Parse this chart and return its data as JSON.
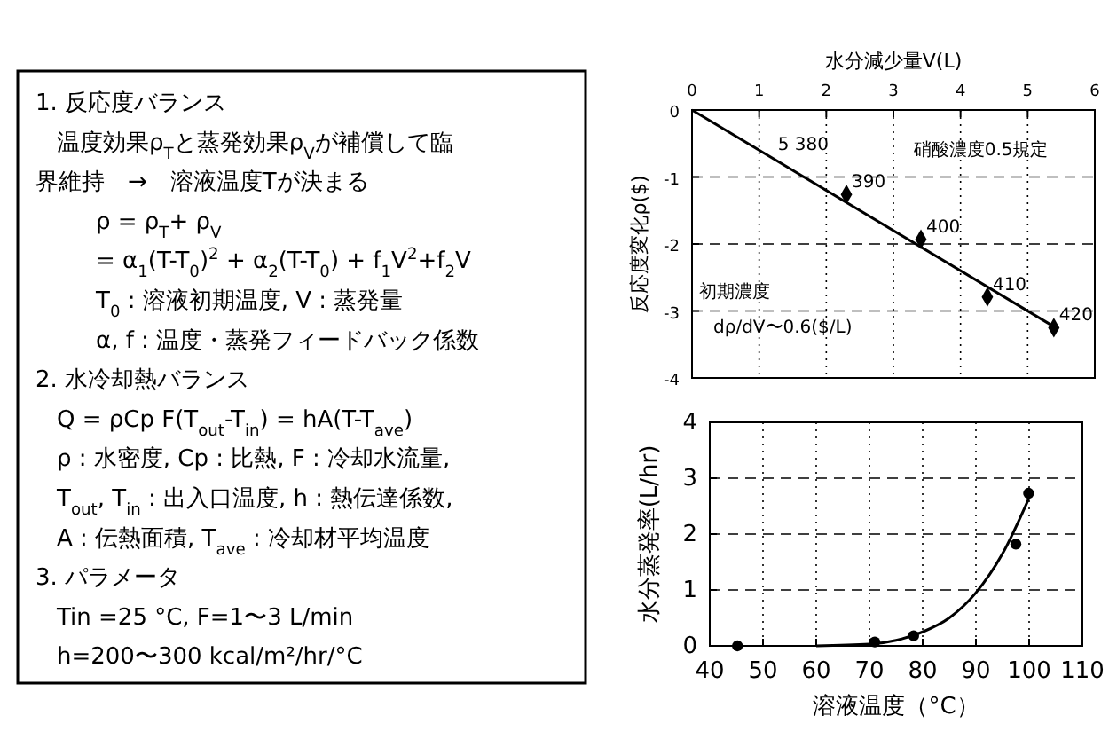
{
  "chart_data": [
    {
      "type": "other",
      "annotations": [
        "1. 反応度バランス",
        "温度効果ρ$_{T}$と蒸発効果ρ$_{V}$が補償して臨",
        "界維持　→　溶液温度Tが決まる",
        "ρ = ρ$_{T}$+ ρ$_{V}$",
        "= α$_{1}$(T-T$_{0}$)$^{2}$ + α$_{2}$(T-T$_{0}$) + f$_{1}$V$^{2}$+f$_{2}$V",
        "T$_{0}$ : 溶液初期温度, V : 蒸発量",
        "α, f : 温度・蒸発フィードバック係数",
        "2. 水冷却熱バランス",
        "Q = ρCp F(T$_{out}$-T$_{in}$) = hA(T-T$_{ave}$)",
        "ρ : 水密度, Cp : 比熱,  F : 冷却水流量,",
        "T$_{out}$, T$_{in}$ : 出入口温度, h : 熱伝達係数,",
        "A : 伝熱面積, T$_{ave}$ : 冷却材平均温度",
        "3. パラメータ",
        "Tin =25 °C,  F=1〜3  L/min",
        "h=200〜300 kcal/m²/hr/°C"
      ]
    },
    {
      "type": "scatter",
      "xlabel": "水分減少量V(L)",
      "ylabel": "反応度変化ρ($)",
      "xlim": [
        0,
        6
      ],
      "xticks": [
        0,
        1,
        2,
        3,
        4,
        5,
        6
      ],
      "ylim": [
        -4,
        0
      ],
      "yticks": [
        0,
        -1,
        -2,
        -3,
        -4
      ],
      "grid": true,
      "marker": "diamond",
      "series": [
        {
          "type": "scatter",
          "color": "#000000",
          "x": [
            2.3,
            3.41,
            4.4,
            5.39
          ],
          "values": [
            -1.26,
            -1.93,
            -2.79,
            -3.25
          ]
        },
        {
          "type": "line",
          "color": "#000000",
          "marker": "none",
          "x": [
            0,
            5.45
          ],
          "values": [
            0,
            -3.27
          ]
        }
      ],
      "annotations": [
        {
          "text": "5 380",
          "x": 1.2,
          "y": -0.7
        },
        {
          "text": "390",
          "x": 2.3,
          "y": -1.26
        },
        {
          "text": "400",
          "x": 3.41,
          "y": -1.93
        },
        {
          "text": "410",
          "x": 4.4,
          "y": -2.79
        },
        {
          "text": "420",
          "x": 5.39,
          "y": -3.25
        },
        "硝酸濃度0.5規定",
        "初期濃度",
        "dρ/dV〜0.6($/L)"
      ]
    },
    {
      "type": "scatter",
      "xlabel": "溶液温度（°C）",
      "ylabel": "水分蒸発率(L/hr)",
      "xlim": [
        40,
        110
      ],
      "xticks": [
        40,
        50,
        60,
        70,
        80,
        90,
        100,
        110
      ],
      "ylim": [
        0,
        4
      ],
      "yticks": [
        0,
        1,
        2,
        3,
        4
      ],
      "grid": true,
      "marker": "circle",
      "series": [
        {
          "type": "scatter",
          "color": "#000000",
          "x": [
            45.2,
            71,
            78.3,
            97.5,
            99.9
          ],
          "values": [
            0,
            0.07,
            0.18,
            1.82,
            2.73
          ]
        },
        {
          "type": "line",
          "color": "#000000",
          "marker": "none",
          "x": [
            60,
            70,
            75,
            80,
            85,
            90,
            95,
            100
          ],
          "values": [
            0,
            0.03,
            0.1,
            0.25,
            0.5,
            0.95,
            1.65,
            2.65
          ]
        }
      ]
    }
  ]
}
